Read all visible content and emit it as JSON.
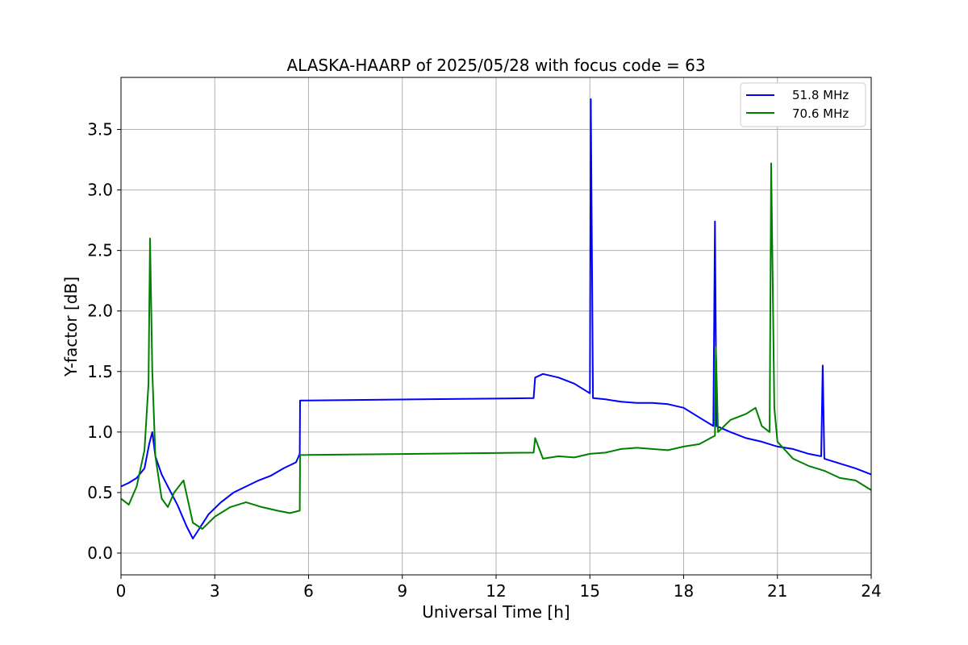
{
  "chart_data": {
    "type": "line",
    "title": "ALASKA-HAARP of 2025/05/28 with focus code = 63",
    "xlabel": "Universal Time [h]",
    "ylabel": "Y-factor [dB]",
    "xlim": [
      0,
      24
    ],
    "ylim": [
      -0.18,
      3.93
    ],
    "xticks": [
      0,
      3,
      6,
      9,
      12,
      15,
      18,
      21,
      24
    ],
    "yticks": [
      0.0,
      0.5,
      1.0,
      1.5,
      2.0,
      2.5,
      3.0,
      3.5
    ],
    "xtick_labels": [
      "0",
      "3",
      "6",
      "9",
      "12",
      "15",
      "18",
      "21",
      "24"
    ],
    "ytick_labels": [
      "0.0",
      "0.5",
      "1.0",
      "1.5",
      "2.0",
      "2.5",
      "3.0",
      "3.5"
    ],
    "grid": true,
    "legend_position": "top-right",
    "series": [
      {
        "name": "51.8 MHz",
        "color": "#0000ff",
        "x": [
          0,
          0.25,
          0.5,
          0.75,
          0.9,
          1.0,
          1.1,
          1.3,
          1.5,
          1.8,
          2.1,
          2.3,
          2.5,
          2.8,
          3.2,
          3.6,
          4.0,
          4.4,
          4.8,
          5.2,
          5.6,
          5.72,
          5.73,
          13.2,
          13.25,
          13.5,
          14.0,
          14.5,
          15.0,
          15.03,
          15.1,
          15.5,
          16.0,
          16.5,
          17.0,
          17.5,
          18.0,
          18.5,
          18.95,
          19.0,
          19.05,
          19.5,
          20.0,
          20.5,
          21.0,
          21.5,
          22.0,
          22.4,
          22.45,
          22.5,
          23.0,
          23.5,
          24.0
        ],
        "y": [
          0.55,
          0.58,
          0.62,
          0.7,
          0.9,
          1.0,
          0.8,
          0.65,
          0.55,
          0.4,
          0.22,
          0.12,
          0.2,
          0.32,
          0.42,
          0.5,
          0.55,
          0.6,
          0.64,
          0.7,
          0.75,
          0.82,
          1.26,
          1.28,
          1.45,
          1.48,
          1.45,
          1.4,
          1.32,
          3.75,
          1.28,
          1.27,
          1.25,
          1.24,
          1.24,
          1.23,
          1.2,
          1.12,
          1.05,
          2.74,
          1.05,
          1.0,
          0.95,
          0.92,
          0.88,
          0.86,
          0.82,
          0.8,
          1.55,
          0.78,
          0.74,
          0.7,
          0.65
        ]
      },
      {
        "name": "70.6 MHz",
        "color": "#008000",
        "x": [
          0,
          0.25,
          0.5,
          0.75,
          0.88,
          0.93,
          1.0,
          1.1,
          1.3,
          1.5,
          1.7,
          2.0,
          2.3,
          2.6,
          3.0,
          3.5,
          4.0,
          4.5,
          5.0,
          5.4,
          5.72,
          5.73,
          13.2,
          13.25,
          13.5,
          14.0,
          14.5,
          15.0,
          15.5,
          16.0,
          16.5,
          17.0,
          17.5,
          18.0,
          18.5,
          19.0,
          19.03,
          19.1,
          19.5,
          20.0,
          20.3,
          20.5,
          20.75,
          20.8,
          20.9,
          21.0,
          21.5,
          22.0,
          22.5,
          23.0,
          23.5,
          24.0
        ],
        "y": [
          0.45,
          0.4,
          0.55,
          0.85,
          1.4,
          2.6,
          1.5,
          0.8,
          0.45,
          0.38,
          0.5,
          0.6,
          0.25,
          0.2,
          0.3,
          0.38,
          0.42,
          0.38,
          0.35,
          0.33,
          0.35,
          0.81,
          0.83,
          0.95,
          0.78,
          0.8,
          0.79,
          0.82,
          0.83,
          0.86,
          0.87,
          0.86,
          0.85,
          0.88,
          0.9,
          0.97,
          1.7,
          1.0,
          1.1,
          1.15,
          1.2,
          1.05,
          1.0,
          3.22,
          1.2,
          0.92,
          0.78,
          0.72,
          0.68,
          0.62,
          0.6,
          0.52
        ]
      }
    ]
  }
}
